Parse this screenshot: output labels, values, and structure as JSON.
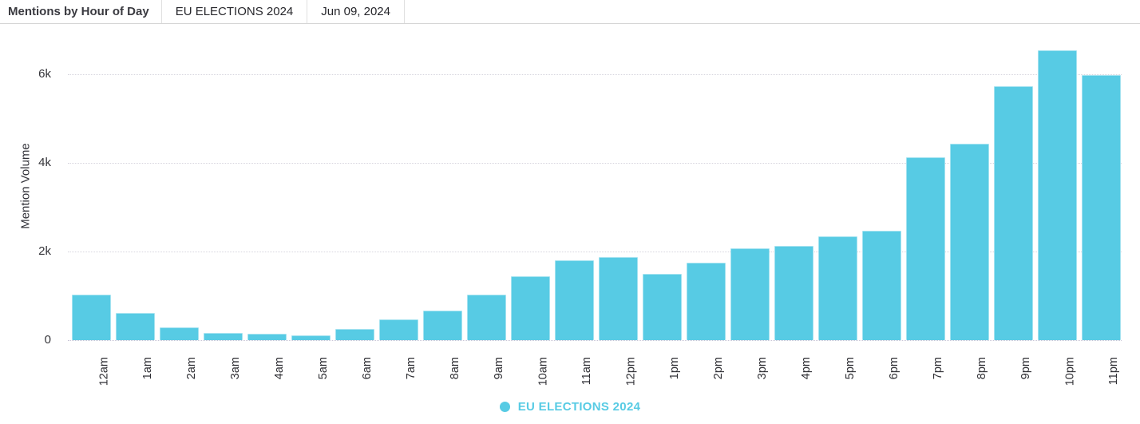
{
  "header": {
    "title": "Mentions by Hour of Day",
    "filters": [
      {
        "label": "EU ELECTIONS 2024"
      },
      {
        "label": "Jun 09, 2024"
      }
    ]
  },
  "chart_data": {
    "type": "bar",
    "title": "Mentions by Hour of Day",
    "query": "EU ELECTIONS 2024",
    "date": "Jun 09, 2024",
    "xlabel": "",
    "ylabel": "Mention Volume",
    "categories": [
      "12am",
      "1am",
      "2am",
      "3am",
      "4am",
      "5am",
      "6am",
      "7am",
      "8am",
      "9am",
      "10am",
      "11am",
      "12pm",
      "1pm",
      "2pm",
      "3pm",
      "4pm",
      "5pm",
      "6pm",
      "7pm",
      "8pm",
      "9pm",
      "10pm",
      "11pm"
    ],
    "values": [
      1030,
      610,
      280,
      170,
      145,
      115,
      250,
      460,
      660,
      1030,
      1450,
      1810,
      1880,
      1500,
      1750,
      2070,
      2130,
      2340,
      2460,
      4130,
      4440,
      5730,
      6540,
      5980
    ],
    "yticks": [
      {
        "value": 0,
        "label": "0"
      },
      {
        "value": 2000,
        "label": "2k"
      },
      {
        "value": 4000,
        "label": "4k"
      },
      {
        "value": 6000,
        "label": "6k"
      }
    ],
    "ylim": [
      0,
      7150
    ],
    "grid": "horizontal-dotted",
    "legend_position": "bottom-center",
    "bar_color": "#57cbe4"
  },
  "legend": {
    "label": "EU ELECTIONS 2024",
    "dot_color": "#57cbe4"
  },
  "colors": {
    "accent": "#57cbe4",
    "header_border": "#d6d6d6",
    "gridline": "#d7d5de",
    "axis_text": "#35353a",
    "title_text": "#3a3a40"
  }
}
